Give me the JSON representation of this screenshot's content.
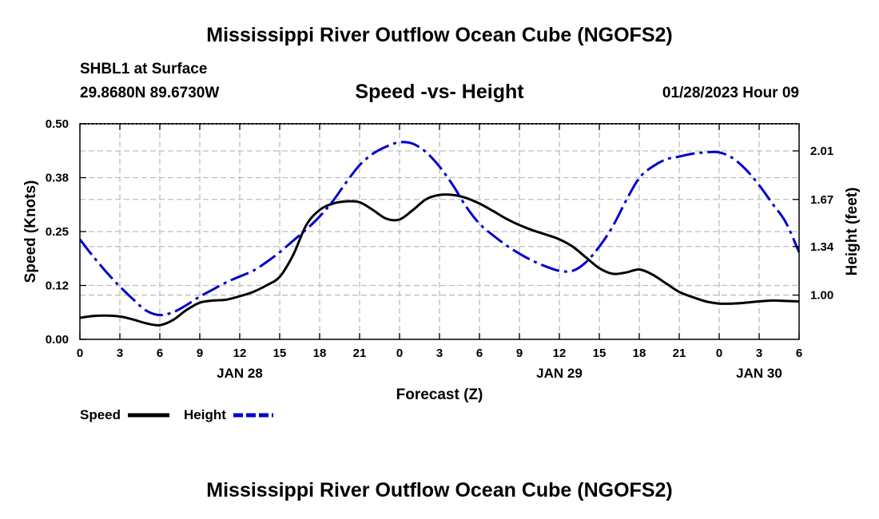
{
  "header": {
    "title": "Mississippi River Outflow Ocean Cube (NGOFS2)",
    "station": "SHBL1 at Surface",
    "coords": "29.8680N  89.6730W",
    "subtitle": "Speed -vs- Height",
    "timestamp": "01/28/2023 Hour 09"
  },
  "footer": {
    "title": "Mississippi River Outflow Ocean Cube (NGOFS2)"
  },
  "legend": {
    "speed_label": "Speed",
    "height_label": "Height"
  },
  "chart_data": {
    "type": "line",
    "title": "Speed -vs- Height",
    "xlabel": "Forecast (Z)",
    "ylabel": "Speed (Knots)",
    "y2label": "Height (feet)",
    "xlim": [
      0,
      54
    ],
    "ylim": [
      0,
      0.5
    ],
    "y2lim": [
      0.69,
      2.2
    ],
    "x_ticks": [
      0,
      3,
      6,
      9,
      12,
      15,
      18,
      21,
      24,
      27,
      30,
      33,
      36,
      39,
      42,
      45,
      48,
      51,
      54
    ],
    "x_tick_labels": [
      "0",
      "3",
      "6",
      "9",
      "12",
      "15",
      "18",
      "21",
      "0",
      "3",
      "6",
      "9",
      "12",
      "15",
      "18",
      "21",
      "0",
      "3",
      "6"
    ],
    "date_labels": [
      {
        "x": 12,
        "label": "JAN 28"
      },
      {
        "x": 36,
        "label": "JAN 29"
      },
      {
        "x": 51,
        "label": "JAN 30"
      }
    ],
    "y_ticks": [
      0.0,
      0.125,
      0.25,
      0.375,
      0.5
    ],
    "y_tick_labels": [
      "0.00",
      "0.12",
      "0.25",
      "0.38",
      "0.50"
    ],
    "y2_ticks": [
      1.0,
      1.34,
      1.67,
      2.01
    ],
    "y2_tick_labels": [
      "1.00",
      "1.34",
      "1.67",
      "2.01"
    ],
    "grid": true,
    "legend_position": "bottom-left",
    "series": [
      {
        "name": "Speed",
        "axis": "left",
        "color": "#000000",
        "style": "solid",
        "x": [
          0,
          1,
          2,
          3,
          4,
          5,
          6,
          7,
          8,
          9,
          10,
          11,
          12,
          13,
          14,
          15,
          16,
          17,
          18,
          19,
          20,
          21,
          22,
          23,
          24,
          25,
          26,
          27,
          28,
          29,
          30,
          31,
          32,
          33,
          34,
          35,
          36,
          37,
          38,
          39,
          40,
          41,
          42,
          43,
          44,
          45,
          46,
          47,
          48,
          49,
          50,
          51,
          52,
          53,
          54
        ],
        "values": [
          0.05,
          0.054,
          0.055,
          0.053,
          0.046,
          0.037,
          0.033,
          0.045,
          0.068,
          0.085,
          0.09,
          0.092,
          0.1,
          0.11,
          0.125,
          0.145,
          0.195,
          0.265,
          0.3,
          0.315,
          0.32,
          0.318,
          0.3,
          0.28,
          0.278,
          0.3,
          0.325,
          0.335,
          0.335,
          0.328,
          0.315,
          0.298,
          0.28,
          0.265,
          0.253,
          0.243,
          0.232,
          0.215,
          0.19,
          0.165,
          0.152,
          0.155,
          0.162,
          0.15,
          0.13,
          0.11,
          0.098,
          0.088,
          0.083,
          0.083,
          0.085,
          0.088,
          0.09,
          0.089,
          0.088
        ]
      },
      {
        "name": "Height",
        "axis": "right",
        "color": "#0000cc",
        "style": "dashed",
        "x": [
          0,
          1,
          2,
          3,
          4,
          5,
          6,
          7,
          8,
          9,
          10,
          11,
          12,
          13,
          14,
          15,
          16,
          17,
          18,
          19,
          20,
          21,
          22,
          23,
          24,
          25,
          26,
          27,
          28,
          29,
          30,
          31,
          32,
          33,
          34,
          35,
          36,
          37,
          38,
          39,
          40,
          41,
          42,
          43,
          44,
          45,
          46,
          47,
          48,
          49,
          50,
          51,
          52,
          53,
          54
        ],
        "values": [
          1.39,
          1.27,
          1.16,
          1.06,
          0.97,
          0.89,
          0.86,
          0.88,
          0.93,
          0.99,
          1.04,
          1.09,
          1.13,
          1.17,
          1.23,
          1.3,
          1.38,
          1.46,
          1.55,
          1.66,
          1.79,
          1.91,
          1.99,
          2.04,
          2.07,
          2.06,
          2.0,
          1.9,
          1.77,
          1.62,
          1.5,
          1.42,
          1.35,
          1.29,
          1.24,
          1.2,
          1.17,
          1.17,
          1.23,
          1.34,
          1.48,
          1.66,
          1.82,
          1.9,
          1.95,
          1.97,
          1.99,
          2.0,
          2.0,
          1.96,
          1.88,
          1.77,
          1.64,
          1.51,
          1.3
        ]
      }
    ]
  }
}
